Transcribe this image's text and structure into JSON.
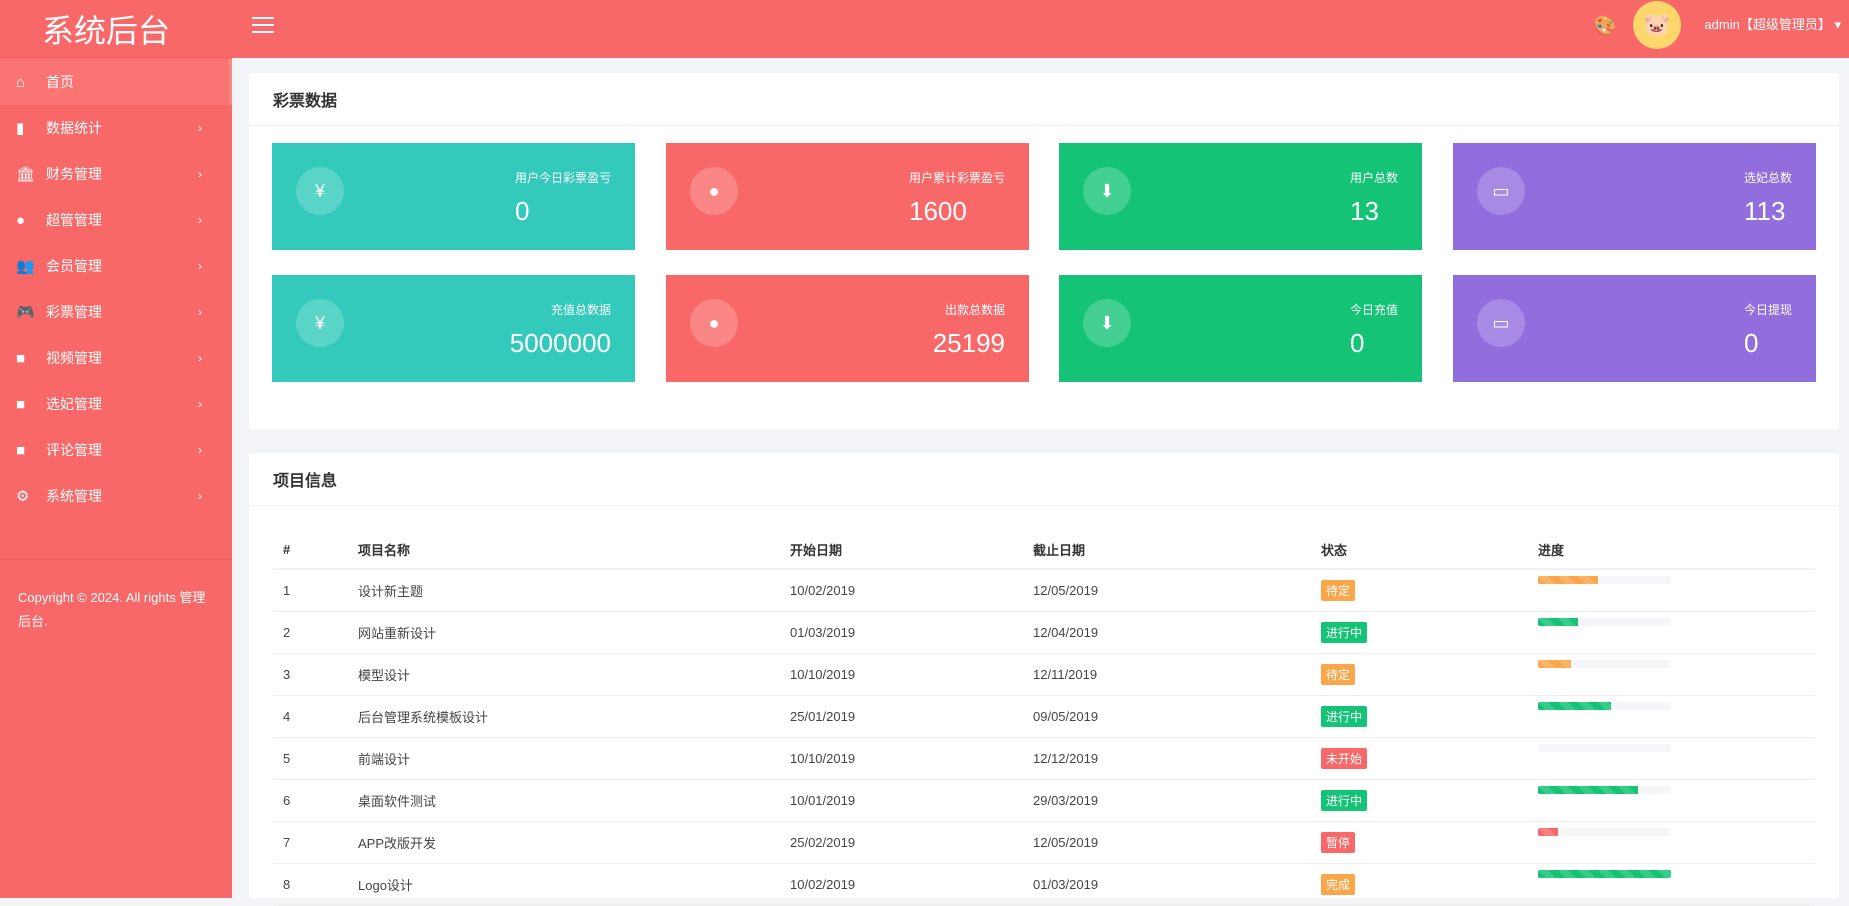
{
  "app": {
    "title": "系统后台"
  },
  "sidebar": {
    "items": [
      {
        "label": "首页",
        "icon": "home-icon",
        "glyph": "⌂",
        "active": true
      },
      {
        "label": "数据统计",
        "icon": "bar-chart-icon",
        "glyph": "▮"
      },
      {
        "label": "财务管理",
        "icon": "bank-icon",
        "glyph": "🏛"
      },
      {
        "label": "超管管理",
        "icon": "user-icon",
        "glyph": "●"
      },
      {
        "label": "会员管理",
        "icon": "users-icon",
        "glyph": "👥"
      },
      {
        "label": "彩票管理",
        "icon": "gamepad-icon",
        "glyph": "🎮"
      },
      {
        "label": "视频管理",
        "icon": "video-icon",
        "glyph": "■"
      },
      {
        "label": "选妃管理",
        "icon": "video-icon",
        "glyph": "■"
      },
      {
        "label": "评论管理",
        "icon": "video-icon",
        "glyph": "■"
      },
      {
        "label": "系统管理",
        "icon": "gear-icon",
        "glyph": "⚙"
      }
    ],
    "copyright": "Copyright © 2024. All rights 管理后台."
  },
  "header": {
    "user": "admin【超级管理员】"
  },
  "stats": {
    "title": "彩票数据",
    "cards": [
      {
        "label": "用户今日彩票盈亏",
        "value": "0",
        "color": "#33cabb",
        "icon": "yen-icon",
        "glyph": "¥"
      },
      {
        "label": "用户累计彩票盈亏",
        "value": "1600",
        "color": "#f96868",
        "icon": "user-icon",
        "glyph": "●"
      },
      {
        "label": "用户总数",
        "value": "13",
        "color": "#15c377",
        "icon": "arrow-down-icon",
        "glyph": "⬇"
      },
      {
        "label": "选妃总数",
        "value": "113",
        "color": "#926dde",
        "icon": "comment-icon",
        "glyph": "▭"
      },
      {
        "label": "充值总数据",
        "value": "5000000",
        "color": "#33cabb",
        "icon": "yen-icon",
        "glyph": "¥"
      },
      {
        "label": "出款总数据",
        "value": "25199",
        "color": "#f96868",
        "icon": "user-icon",
        "glyph": "●"
      },
      {
        "label": "今日充值",
        "value": "0",
        "color": "#15c377",
        "icon": "arrow-down-icon",
        "glyph": "⬇"
      },
      {
        "label": "今日提现",
        "value": "0",
        "color": "#926dde",
        "icon": "comment-icon",
        "glyph": "▭"
      }
    ]
  },
  "projects": {
    "title": "项目信息",
    "columns": [
      "#",
      "项目名称",
      "开始日期",
      "截止日期",
      "状态",
      "进度"
    ],
    "rows": [
      {
        "id": "1",
        "name": "设计新主题",
        "start": "10/02/2019",
        "end": "12/05/2019",
        "status": "待定",
        "status_color": "#faa64b",
        "progress": 45
      },
      {
        "id": "2",
        "name": "网站重新设计",
        "start": "01/03/2019",
        "end": "12/04/2019",
        "status": "进行中",
        "status_color": "#15c377",
        "progress": 30
      },
      {
        "id": "3",
        "name": "模型设计",
        "start": "10/10/2019",
        "end": "12/11/2019",
        "status": "待定",
        "status_color": "#faa64b",
        "progress": 25
      },
      {
        "id": "4",
        "name": "后台管理系统模板设计",
        "start": "25/01/2019",
        "end": "09/05/2019",
        "status": "进行中",
        "status_color": "#15c377",
        "progress": 55
      },
      {
        "id": "5",
        "name": "前端设计",
        "start": "10/10/2019",
        "end": "12/12/2019",
        "status": "未开始",
        "status_color": "#f96868",
        "progress": 0
      },
      {
        "id": "6",
        "name": "桌面软件测试",
        "start": "10/01/2019",
        "end": "29/03/2019",
        "status": "进行中",
        "status_color": "#15c377",
        "progress": 75
      },
      {
        "id": "7",
        "name": "APP改版开发",
        "start": "25/02/2019",
        "end": "12/05/2019",
        "status": "暂停",
        "status_color": "#f96868",
        "progress": 15
      },
      {
        "id": "8",
        "name": "Logo设计",
        "start": "10/02/2019",
        "end": "01/03/2019",
        "status": "完成",
        "status_color": "#faa64b",
        "progress": 100,
        "bar_color": "#15c377"
      }
    ]
  }
}
